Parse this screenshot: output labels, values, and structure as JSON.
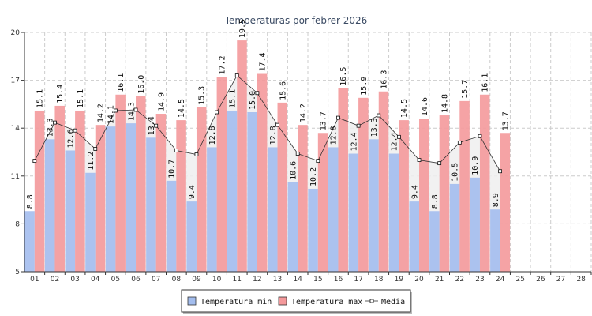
{
  "chart_data": {
    "type": "bar",
    "title": "Temperaturas por febrer 2026",
    "categories": [
      "01",
      "02",
      "03",
      "04",
      "05",
      "06",
      "07",
      "08",
      "09",
      "10",
      "11",
      "12",
      "13",
      "14",
      "15",
      "16",
      "17",
      "18",
      "19",
      "20",
      "21",
      "22",
      "23",
      "24",
      "25",
      "26",
      "27",
      "28"
    ],
    "series": [
      {
        "name": "Temperatura min",
        "kind": "bar",
        "color": "#a3bdee",
        "values": [
          8.8,
          13.3,
          12.6,
          11.2,
          14.1,
          14.3,
          13.4,
          10.7,
          9.4,
          12.8,
          15.1,
          15.0,
          12.8,
          10.6,
          10.2,
          12.8,
          12.4,
          13.3,
          12.4,
          9.4,
          8.8,
          10.5,
          10.9,
          8.9,
          null,
          null,
          null,
          null
        ]
      },
      {
        "name": "Temperatura max",
        "kind": "bar",
        "color": "#f4999b",
        "values": [
          15.1,
          15.4,
          15.1,
          14.2,
          16.1,
          16.0,
          14.9,
          14.5,
          15.3,
          17.2,
          19.5,
          17.4,
          15.6,
          14.2,
          13.7,
          16.5,
          15.9,
          16.3,
          14.5,
          14.6,
          14.8,
          15.7,
          16.1,
          13.7,
          null,
          null,
          null,
          null
        ]
      },
      {
        "name": "Media",
        "kind": "line",
        "color": "#333333",
        "values": [
          11.95,
          14.35,
          13.85,
          12.7,
          15.1,
          15.15,
          14.15,
          12.6,
          12.35,
          15.0,
          17.3,
          16.2,
          14.2,
          12.4,
          11.95,
          14.65,
          14.15,
          14.8,
          13.45,
          12.0,
          11.8,
          13.1,
          13.5,
          11.3,
          null,
          null,
          null,
          null
        ]
      }
    ],
    "ylim": [
      5,
      20
    ],
    "yticks": [
      5,
      8,
      11,
      14,
      17,
      20
    ],
    "grid": true,
    "legend_position": "bottom-center",
    "legend_labels": [
      "Temperatura min",
      "Temperatura max",
      "Media"
    ],
    "media_fill_color": "#eeeeee"
  }
}
